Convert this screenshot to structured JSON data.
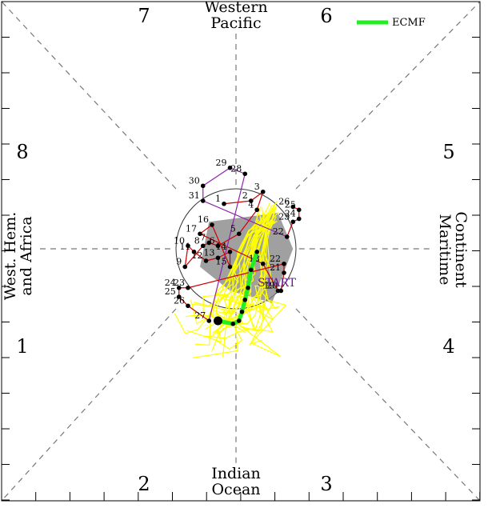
{
  "chart_data": {
    "type": "scatter",
    "xlim": [
      -4,
      4
    ],
    "ylim": [
      -4,
      4
    ],
    "grid": false,
    "phase_numbers": [
      "1",
      "2",
      "3",
      "4",
      "5",
      "6",
      "7",
      "8"
    ],
    "regions": {
      "top": [
        "Western",
        "Pacific"
      ],
      "bottom": [
        "Indian",
        "Ocean"
      ],
      "left": [
        "West. Hem.",
        "and Africa"
      ],
      "right": [
        "Maritime",
        "Continent"
      ]
    },
    "legend": {
      "label": "ECMF",
      "color": "#22ee22",
      "position": "top-right"
    },
    "start_label": "START",
    "colors": {
      "observed": "#cc0000",
      "observed_early": "#8e24aa",
      "members": "#ffff00",
      "ensemble_mean": "#22ee22",
      "start_label": "#6a1b9a",
      "shading": "#808080"
    },
    "observed": [
      {
        "label": "1",
        "x": -0.2,
        "y": 0.75
      },
      {
        "label": "2",
        "x": 0.25,
        "y": 0.8
      },
      {
        "label": "3",
        "x": 0.45,
        "y": 0.95
      },
      {
        "label": "4",
        "x": 0.35,
        "y": 0.65
      },
      {
        "label": "5",
        "x": 0.05,
        "y": 0.25
      },
      {
        "label": "6",
        "x": -0.3,
        "y": 0.05
      },
      {
        "label": "7",
        "x": -0.45,
        "y": 0.1
      },
      {
        "label": "8",
        "x": -0.55,
        "y": 0.05
      },
      {
        "label": "9",
        "x": -0.85,
        "y": -0.3
      },
      {
        "label": "10",
        "x": -0.8,
        "y": 0.05
      },
      {
        "label": "11",
        "x": -0.7,
        "y": -0.05
      },
      {
        "label": "12",
        "x": -0.5,
        "y": -0.2
      },
      {
        "label": "13",
        "x": -0.3,
        "y": -0.15
      },
      {
        "label": "14",
        "x": -0.1,
        "y": -0.05
      },
      {
        "label": "15",
        "x": -0.1,
        "y": -0.3
      },
      {
        "label": "16",
        "x": -0.4,
        "y": 0.4
      },
      {
        "label": "17",
        "x": -0.6,
        "y": 0.25
      },
      {
        "label": "18",
        "x": 0.45,
        "y": -0.25
      },
      {
        "label": "19",
        "x": 0.7,
        "y": -0.7
      },
      {
        "label": "20",
        "x": 0.75,
        "y": -0.7
      },
      {
        "label": "21",
        "x": 0.8,
        "y": -0.4
      },
      {
        "label": "22",
        "x": 0.8,
        "y": -0.25
      },
      {
        "label": "23",
        "x": -0.8,
        "y": -0.65
      },
      {
        "label": "24",
        "x": -0.95,
        "y": -0.65
      },
      {
        "label": "25",
        "x": -0.95,
        "y": -0.8
      },
      {
        "label": "26",
        "x": -0.8,
        "y": -0.95
      },
      {
        "label": "27",
        "x": -0.45,
        "y": -1.2
      },
      {
        "label": "28",
        "x": 0.15,
        "y": 1.25
      },
      {
        "label": "29",
        "x": -0.1,
        "y": 1.35
      },
      {
        "label": "30",
        "x": -0.55,
        "y": 1.05
      },
      {
        "label": "31",
        "x": -0.55,
        "y": 0.8
      },
      {
        "label": "22",
        "x": 0.85,
        "y": 0.2
      },
      {
        "label": "23",
        "x": 0.95,
        "y": 0.45
      },
      {
        "label": "24",
        "x": 1.05,
        "y": 0.5
      },
      {
        "label": "25",
        "x": 1.05,
        "y": 0.65
      },
      {
        "label": "26",
        "x": 0.95,
        "y": 0.7
      }
    ],
    "ensemble_mean": [
      {
        "x": 0.35,
        "y": -0.05
      },
      {
        "x": 0.25,
        "y": -0.35
      },
      {
        "x": 0.2,
        "y": -0.65
      },
      {
        "x": 0.15,
        "y": -0.85
      },
      {
        "x": 0.1,
        "y": -1.05
      },
      {
        "x": 0.05,
        "y": -1.2
      },
      {
        "x": -0.05,
        "y": -1.25
      },
      {
        "x": -0.3,
        "y": -1.2
      }
    ]
  }
}
